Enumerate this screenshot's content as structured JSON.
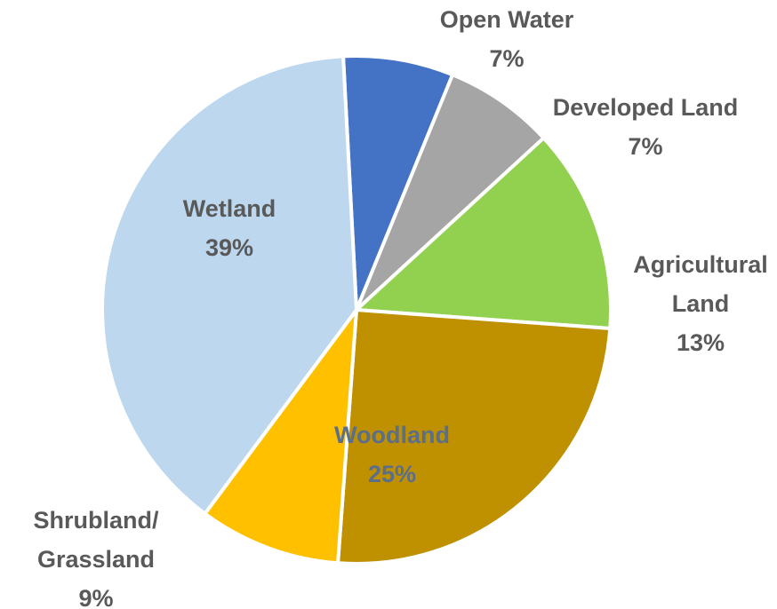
{
  "chart_data": {
    "type": "pie",
    "title": "",
    "start_angle_deg": -3,
    "direction": "clockwise",
    "slices": [
      {
        "key": "open-water",
        "label_lines": [
          "Open Water"
        ],
        "percent_label": "7%",
        "value": 7,
        "color": "#4472C4",
        "label_color": "#595959"
      },
      {
        "key": "developed",
        "label_lines": [
          "Developed Land"
        ],
        "percent_label": "7%",
        "value": 7,
        "color": "#A5A5A5",
        "label_color": "#595959"
      },
      {
        "key": "agricultural",
        "label_lines": [
          "Agricultural",
          "Land"
        ],
        "percent_label": "13%",
        "value": 13,
        "color": "#92D050",
        "label_color": "#595959"
      },
      {
        "key": "woodland",
        "label_lines": [
          "Woodland"
        ],
        "percent_label": "25%",
        "value": 25,
        "color": "#BF9000",
        "label_color": "#5B6F8A"
      },
      {
        "key": "shrubland",
        "label_lines": [
          "Shrubland/",
          "Grassland"
        ],
        "percent_label": "9%",
        "value": 9,
        "color": "#FFC000",
        "label_color": "#595959"
      },
      {
        "key": "wetland",
        "label_lines": [
          "Wetland"
        ],
        "percent_label": "39%",
        "value": 39,
        "color": "#BDD7EE",
        "label_color": "#595959"
      }
    ]
  }
}
